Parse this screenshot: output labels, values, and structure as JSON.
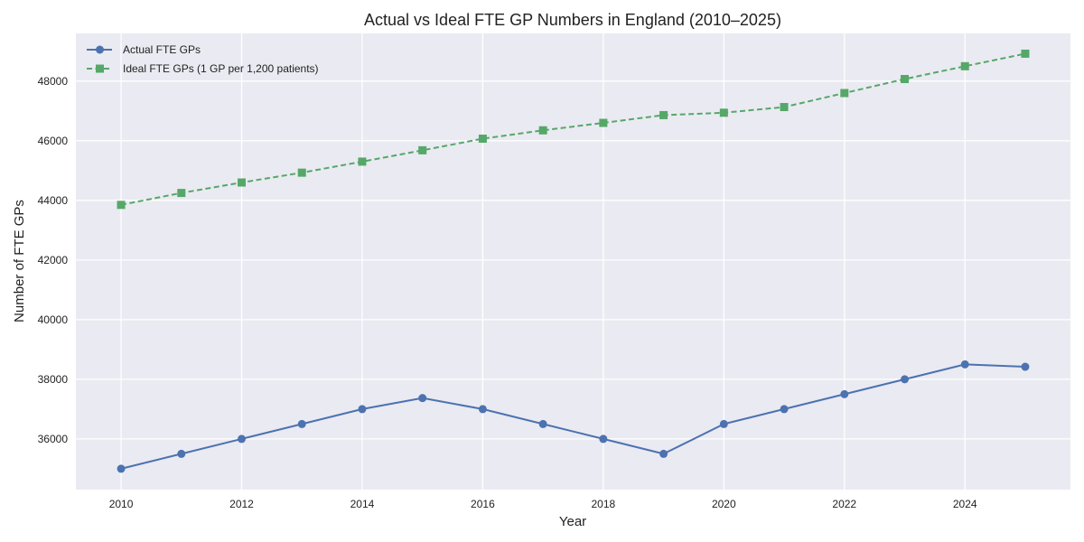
{
  "chart_data": {
    "type": "line",
    "title": "Actual vs Ideal FTE GP Numbers in England (2010–2025)",
    "xlabel": "Year",
    "ylabel": "Number of FTE GPs",
    "x": [
      2010,
      2011,
      2012,
      2013,
      2014,
      2015,
      2016,
      2017,
      2018,
      2019,
      2020,
      2021,
      2022,
      2023,
      2024,
      2025
    ],
    "xlim": [
      2009.25,
      2025.75
    ],
    "ylim": [
      34300,
      49600
    ],
    "x_ticks": [
      "2010",
      "2012",
      "2014",
      "2016",
      "2018",
      "2020",
      "2022",
      "2024"
    ],
    "y_ticks": [
      "36000",
      "38000",
      "40000",
      "42000",
      "44000",
      "46000",
      "48000"
    ],
    "grid": true,
    "legend_position": "top-left",
    "series": [
      {
        "name": "Actual FTE GPs",
        "color": "#4c72b0",
        "line_style": "solid",
        "marker": "circle",
        "values": [
          35000,
          35500,
          36000,
          36500,
          37000,
          37370,
          37000,
          36500,
          36000,
          35500,
          36500,
          37000,
          37500,
          38000,
          38500,
          38420
        ]
      },
      {
        "name": "Ideal FTE GPs (1 GP per 1,200 patients)",
        "color": "#55a868",
        "line_style": "dashed",
        "marker": "square",
        "values": [
          43850,
          44250,
          44600,
          44930,
          45300,
          45680,
          46070,
          46350,
          46600,
          46860,
          46940,
          47130,
          47600,
          48070,
          48500,
          48920
        ]
      }
    ]
  }
}
